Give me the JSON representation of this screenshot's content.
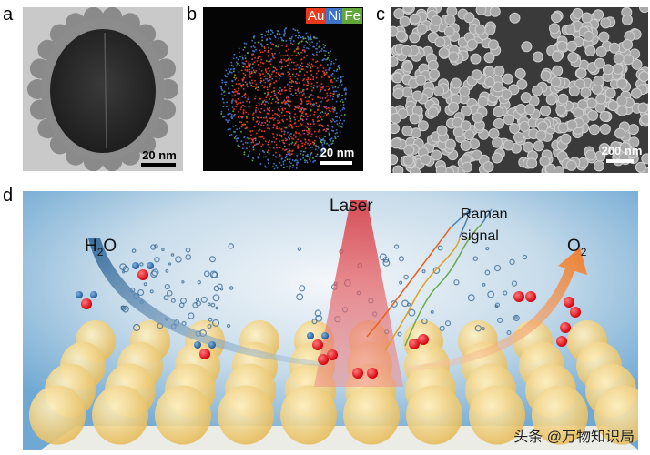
{
  "panels": {
    "a": {
      "label": "a",
      "scale_bar": "20 nm"
    },
    "b": {
      "label": "b",
      "scale_bar": "20 nm",
      "legend": [
        {
          "text": "Au",
          "color": "#e8391c"
        },
        {
          "text": "Ni",
          "color": "#3f73c9"
        },
        {
          "text": "Fe",
          "color": "#62a73a"
        }
      ]
    },
    "c": {
      "label": "c",
      "scale_bar": "200 nm"
    },
    "d": {
      "label": "d",
      "laser": "Laser",
      "raman_line1": "Raman",
      "raman_line2": "signal",
      "h2o_main": "H",
      "h2o_sub": "2",
      "h2o_end": "O",
      "o2_main": "O",
      "o2_sub": "2"
    }
  },
  "watermark": "头条 @万物知识局",
  "colors": {
    "background_d": "#7fb2d6",
    "laser": "#e0353d",
    "arrow_in": "#3c6f9e",
    "arrow_out": "#f08a3a",
    "oxygen": "#e8141c",
    "hydrogen": "#2f6fb0",
    "sphere": "#f0d58a"
  }
}
